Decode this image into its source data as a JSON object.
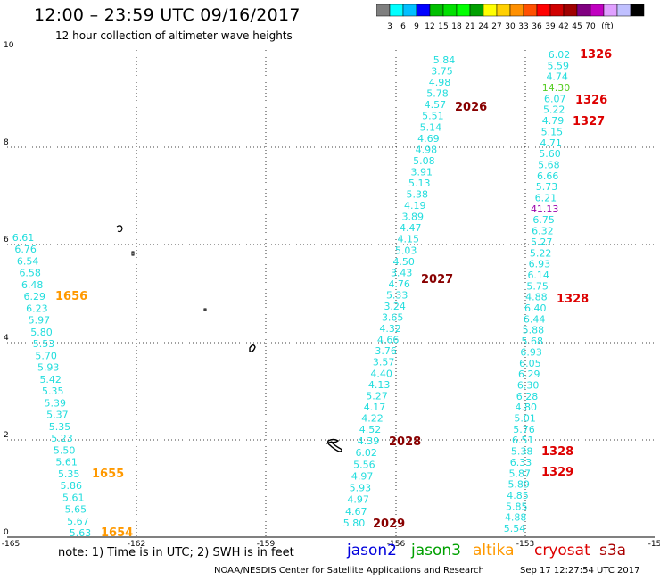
{
  "header": {
    "title": "12:00 – 23:59 UTC 09/16/2017",
    "subtitle": "12 hour collection of altimeter wave heights"
  },
  "colorbar": {
    "colors": [
      "#7f7f7f",
      "#00ffff",
      "#00bfff",
      "#0000ff",
      "#00bf00",
      "#00e000",
      "#00ff00",
      "#00a000",
      "#ffff00",
      "#ffd000",
      "#ff9000",
      "#ff5000",
      "#ff0000",
      "#d00000",
      "#a00000",
      "#800080",
      "#c000c0",
      "#e0a0ff",
      "#c0c0ff",
      "#000000"
    ],
    "labels": [
      "3",
      "6",
      "9",
      "12",
      "15",
      "18",
      "21",
      "24",
      "27",
      "30",
      "33",
      "36",
      "39",
      "42",
      "45",
      "70",
      "(ft)"
    ]
  },
  "axes": {
    "x_ticks": [
      "-165",
      "-162",
      "-159",
      "-156",
      "-153",
      "-15"
    ],
    "y_ticks": [
      "0",
      "2",
      "4",
      "6",
      "8",
      "10"
    ]
  },
  "tracks": {
    "altika": {
      "values": [
        "6.61",
        "6.76",
        "6.54",
        "6.58",
        "6.48",
        "6.29",
        "6.23",
        "5.97",
        "5.80",
        "5.53",
        "5.70",
        "5.93",
        "5.42",
        "5.35",
        "5.39",
        "5.37",
        "5.35",
        "5.23",
        "5.50",
        "5.61",
        "5.35",
        "5.86",
        "5.61",
        "5.65",
        "5.67",
        "5.63"
      ],
      "times": [
        "1656",
        "1655",
        "1654"
      ]
    },
    "jason": {
      "values": [
        "5.84",
        "3.75",
        "4.98",
        "5.78",
        "4.57",
        "5.51",
        "5.14",
        "4.69",
        "4.98",
        "5.08",
        "3.91",
        "5.13",
        "5.38",
        "4.19",
        "3.89",
        "4.47",
        "4.15",
        "5.03",
        "4.50",
        "3.43",
        "4.76",
        "5.33",
        "3.24",
        "3.65",
        "4.32",
        "4.66",
        "3.76",
        "3.57",
        "4.40",
        "4.13",
        "5.27",
        "4.17",
        "4.22",
        "4.52",
        "4.39",
        "6.02",
        "5.56",
        "4.97",
        "5.93",
        "4.97",
        "4.67",
        "5.80"
      ],
      "times": [
        "2026",
        "2027",
        "2028",
        "2029"
      ]
    },
    "cryosat": {
      "values": [
        "6.02",
        "5.59",
        "4.74",
        "14.30",
        "6.07",
        "5.22",
        "4.79",
        "5.15",
        "4.71",
        "5.60",
        "5.68",
        "6.66",
        "5.73",
        "6.21",
        "41.13",
        "6.75",
        "6.32",
        "5.27",
        "5.22",
        "6.93",
        "6.14",
        "5.75",
        "4.88",
        "6.40",
        "6.44",
        "5.88",
        "5.68",
        "6.93",
        "6.05",
        "6.29",
        "6.30",
        "6.28",
        "4.80",
        "5.01",
        "5.76",
        "6.51",
        "5.38",
        "6.33",
        "5.87",
        "5.89",
        "4.85",
        "5.85",
        "4.88",
        "5.54"
      ],
      "times": [
        "1326",
        "1326",
        "1327",
        "1328",
        "1328",
        "1329"
      ]
    }
  },
  "footer": {
    "note": "note:  1) Time is in UTC;  2) SWH is in feet",
    "satellites": [
      {
        "name": "jason2",
        "color": "#0000dd"
      },
      {
        "name": "jason3",
        "color": "#00a000"
      },
      {
        "name": "altika",
        "color": "#ff9900"
      },
      {
        "name": "cryosat",
        "color": "#dd0000"
      },
      {
        "name": "s3a",
        "color": "#aa0000"
      }
    ],
    "credit": "NOAA/NESDIS Center for Satellite Applications and Research",
    "timestamp": "Sep 17 12:27:54 UTC 2017"
  }
}
